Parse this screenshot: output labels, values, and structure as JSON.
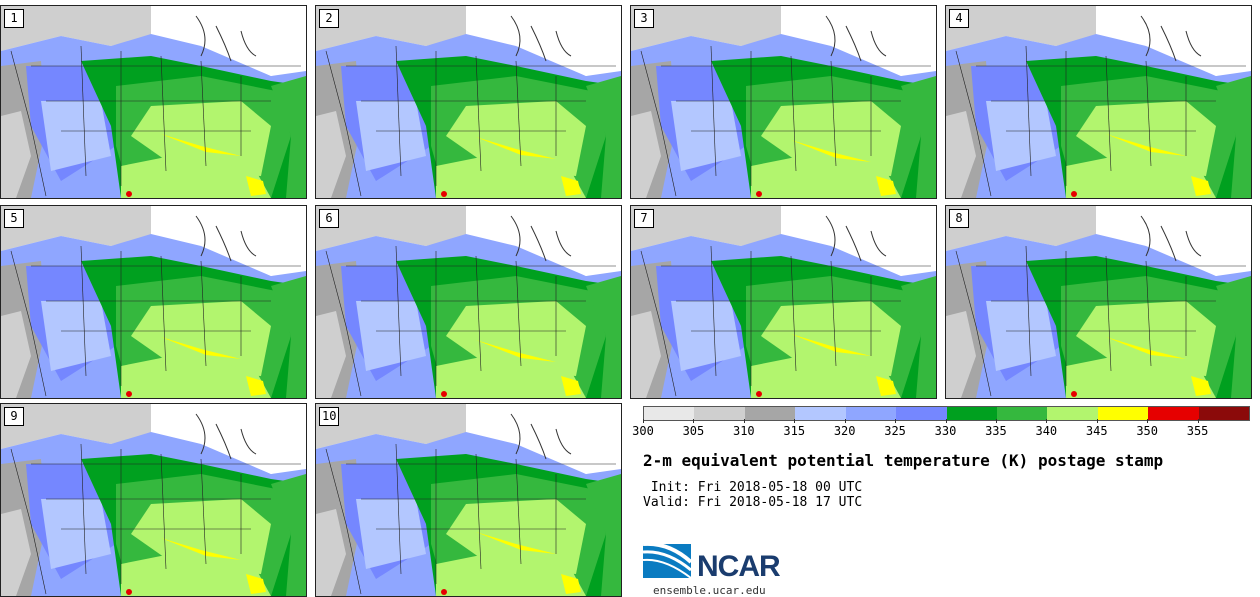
{
  "panels": [
    "1",
    "2",
    "3",
    "4",
    "5",
    "6",
    "7",
    "8",
    "9",
    "10"
  ],
  "colorbar": {
    "colors": [
      "#e8e8e8",
      "#cfcfcf",
      "#a6a6a6",
      "#b3c7ff",
      "#8fa6ff",
      "#7587ff",
      "#00a01f",
      "#35b83e",
      "#b2f56e",
      "#ffff00",
      "#e60000",
      "#8b0a0a"
    ],
    "ticks": [
      "300",
      "305",
      "310",
      "315",
      "320",
      "325",
      "330",
      "335",
      "340",
      "345",
      "350",
      "355"
    ]
  },
  "title": "2-m equivalent potential temperature (K) postage stamp",
  "init": " Init: Fri 2018-05-18 00 UTC",
  "valid": "Valid: Fri 2018-05-18 17 UTC",
  "logo": {
    "text": "NCAR",
    "primary_color": "#1a3c6e",
    "accent_color": "#0a7bc1"
  },
  "site": "ensemble.ucar.edu"
}
